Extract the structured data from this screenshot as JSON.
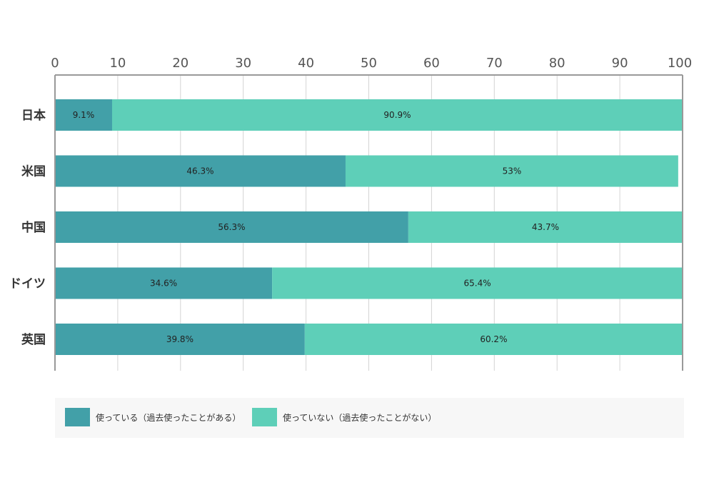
{
  "chart_data": {
    "type": "bar",
    "orientation": "horizontal",
    "stacked": true,
    "categories": [
      "日本",
      "米国",
      "中国",
      "ドイツ",
      "英国"
    ],
    "series": [
      {
        "name": "使っている（過去使ったことがある）",
        "color": "#42a0a8",
        "values": [
          9.1,
          46.3,
          56.3,
          34.6,
          39.8
        ],
        "labels": [
          "9.1%",
          "46.3%",
          "56.3%",
          "34.6%",
          "39.8%"
        ]
      },
      {
        "name": "使っていない（過去使ったことがない）",
        "color": "#5ecfb8",
        "values": [
          90.9,
          53,
          43.7,
          65.4,
          60.2
        ],
        "labels": [
          "90.9%",
          "53%",
          "43.7%",
          "65.4%",
          "60.2%"
        ]
      }
    ],
    "xlim": [
      0,
      100
    ],
    "xticks": [
      0,
      10,
      20,
      30,
      40,
      50,
      60,
      70,
      80,
      90,
      100
    ],
    "x_axis_position": "top",
    "grid": true,
    "legend_position": "bottom"
  }
}
